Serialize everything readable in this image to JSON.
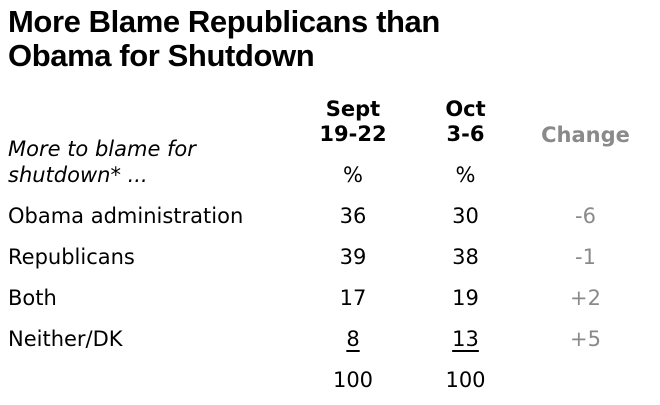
{
  "chart_data": {
    "type": "table",
    "title": "More Blame Republicans than Obama for Shutdown",
    "row_header": {
      "line1": "More to blame for",
      "line2": "shutdown* ..."
    },
    "columns": [
      {
        "line1": "Sept",
        "line2": "19-22",
        "unit": "%"
      },
      {
        "line1": "Oct",
        "line2": "3-6",
        "unit": "%"
      },
      {
        "line1": "Change"
      }
    ],
    "rows": [
      {
        "label": "Obama administration",
        "sept": "36",
        "oct": "30",
        "change": "-6"
      },
      {
        "label": "Republicans",
        "sept": "39",
        "oct": "38",
        "change": "-1"
      },
      {
        "label": "Both",
        "sept": "17",
        "oct": "19",
        "change": "+2"
      },
      {
        "label": "Neither/DK",
        "sept": "8",
        "oct": "13",
        "change": "+5"
      },
      {
        "label": "",
        "sept": "100",
        "oct": "100",
        "change": ""
      }
    ],
    "colors": {
      "text": "#000000",
      "change_column": "#8a8a8a",
      "background": "#ffffff"
    }
  }
}
